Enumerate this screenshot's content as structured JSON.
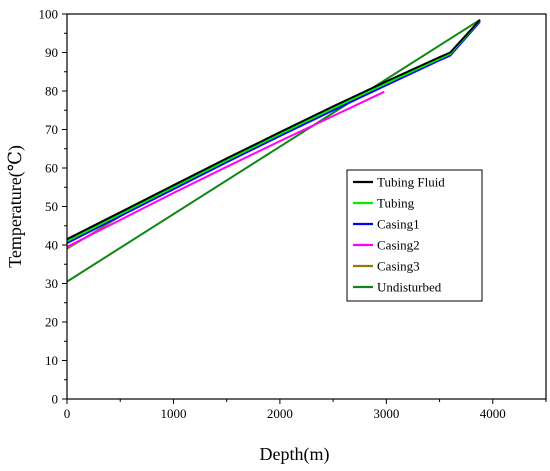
{
  "chart_data": {
    "type": "line",
    "xlabel": "Depth(m)",
    "ylabel": "Temperature(℃)",
    "xlim": [
      0,
      4500
    ],
    "ylim": [
      0,
      100
    ],
    "xticks": [
      0,
      1000,
      2000,
      3000,
      4000
    ],
    "yticks": [
      0,
      10,
      20,
      30,
      40,
      50,
      60,
      70,
      80,
      90,
      100
    ],
    "grid": false,
    "legend_position": "right",
    "series": [
      {
        "name": "Tubing Fluid",
        "color": "#000000",
        "x": [
          0,
          500,
          1000,
          1500,
          2000,
          2500,
          3000,
          3500,
          3600,
          3880
        ],
        "y": [
          41.5,
          48.5,
          55.5,
          62.5,
          69.3,
          76.0,
          82.5,
          88.8,
          90.0,
          98.5
        ]
      },
      {
        "name": "Tubing",
        "color": "#00ee00",
        "x": [
          0,
          500,
          1000,
          1500,
          2000,
          2500,
          3000,
          3500,
          3600,
          3880
        ],
        "y": [
          41.0,
          48.0,
          55.0,
          62.0,
          68.8,
          75.5,
          82.0,
          88.4,
          89.6,
          98.3
        ]
      },
      {
        "name": "Casing1",
        "color": "#0000ff",
        "x": [
          0,
          500,
          1000,
          1500,
          2000,
          2500,
          3000,
          3500,
          3600,
          3880
        ],
        "y": [
          40.5,
          47.5,
          54.5,
          61.5,
          68.3,
          75.0,
          81.5,
          88.0,
          89.2,
          98.0
        ]
      },
      {
        "name": "Casing2",
        "color": "#ff00ff",
        "x": [
          0,
          500,
          1000,
          1500,
          2000,
          2500,
          2980
        ],
        "y": [
          39.5,
          46.5,
          53.5,
          60.3,
          67.0,
          73.5,
          79.8
        ]
      },
      {
        "name": "Casing3",
        "color": "#8b7a1a",
        "x": [
          0,
          250,
          500,
          750
        ],
        "y": [
          39.0,
          43.2,
          47.5,
          51.8
        ]
      },
      {
        "name": "Undisturbed",
        "color": "#118811",
        "x": [
          0,
          3880
        ],
        "y": [
          30.5,
          98.5
        ]
      }
    ]
  }
}
